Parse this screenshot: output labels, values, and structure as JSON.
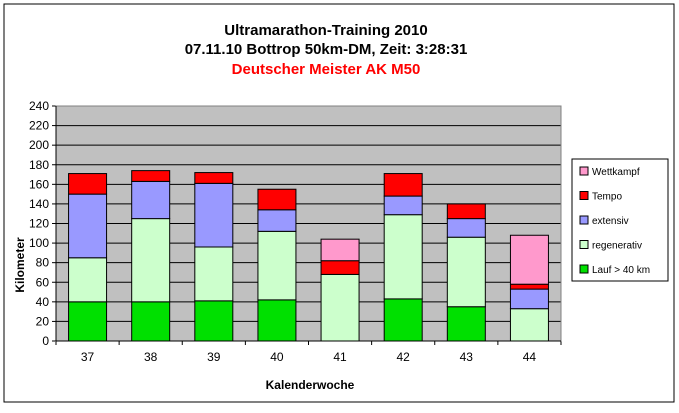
{
  "chart_data": {
    "type": "bar",
    "stacked": true,
    "title_lines": [
      "Ultramarathon-Training 2010",
      "07.11.10 Bottrop 50km-DM, Zeit: 3:28:31"
    ],
    "subtitle": "Deutscher Meister AK M50",
    "xlabel": "Kalenderwoche",
    "ylabel": "Kilometer",
    "ylim": [
      0,
      240
    ],
    "ytick_step": 20,
    "grid": true,
    "legend_position": "right",
    "categories": [
      "37",
      "38",
      "39",
      "40",
      "41",
      "42",
      "43",
      "44"
    ],
    "series": [
      {
        "name": "Lauf > 40 km",
        "color": "#00e000",
        "values": [
          40,
          40,
          41,
          42,
          0,
          43,
          35,
          0
        ]
      },
      {
        "name": "regenerativ",
        "color": "#ccffcc",
        "values": [
          45,
          85,
          55,
          70,
          68,
          86,
          71,
          33
        ]
      },
      {
        "name": "extensiv",
        "color": "#9999ff",
        "values": [
          65,
          38,
          65,
          22,
          0,
          19,
          19,
          20
        ]
      },
      {
        "name": "Tempo",
        "color": "#ff0000",
        "values": [
          21,
          11,
          11,
          21,
          14,
          23,
          15,
          5
        ]
      },
      {
        "name": "Wettkampf",
        "color": "#ff99cc",
        "values": [
          0,
          0,
          0,
          0,
          22,
          0,
          0,
          50
        ]
      }
    ],
    "legend_order": [
      "Wettkampf",
      "Tempo",
      "extensiv",
      "regenerativ",
      "Lauf > 40 km"
    ],
    "colors": {
      "plot_background": "#c0c0c0",
      "subtitle": "#ff0000",
      "text": "#000000"
    }
  }
}
